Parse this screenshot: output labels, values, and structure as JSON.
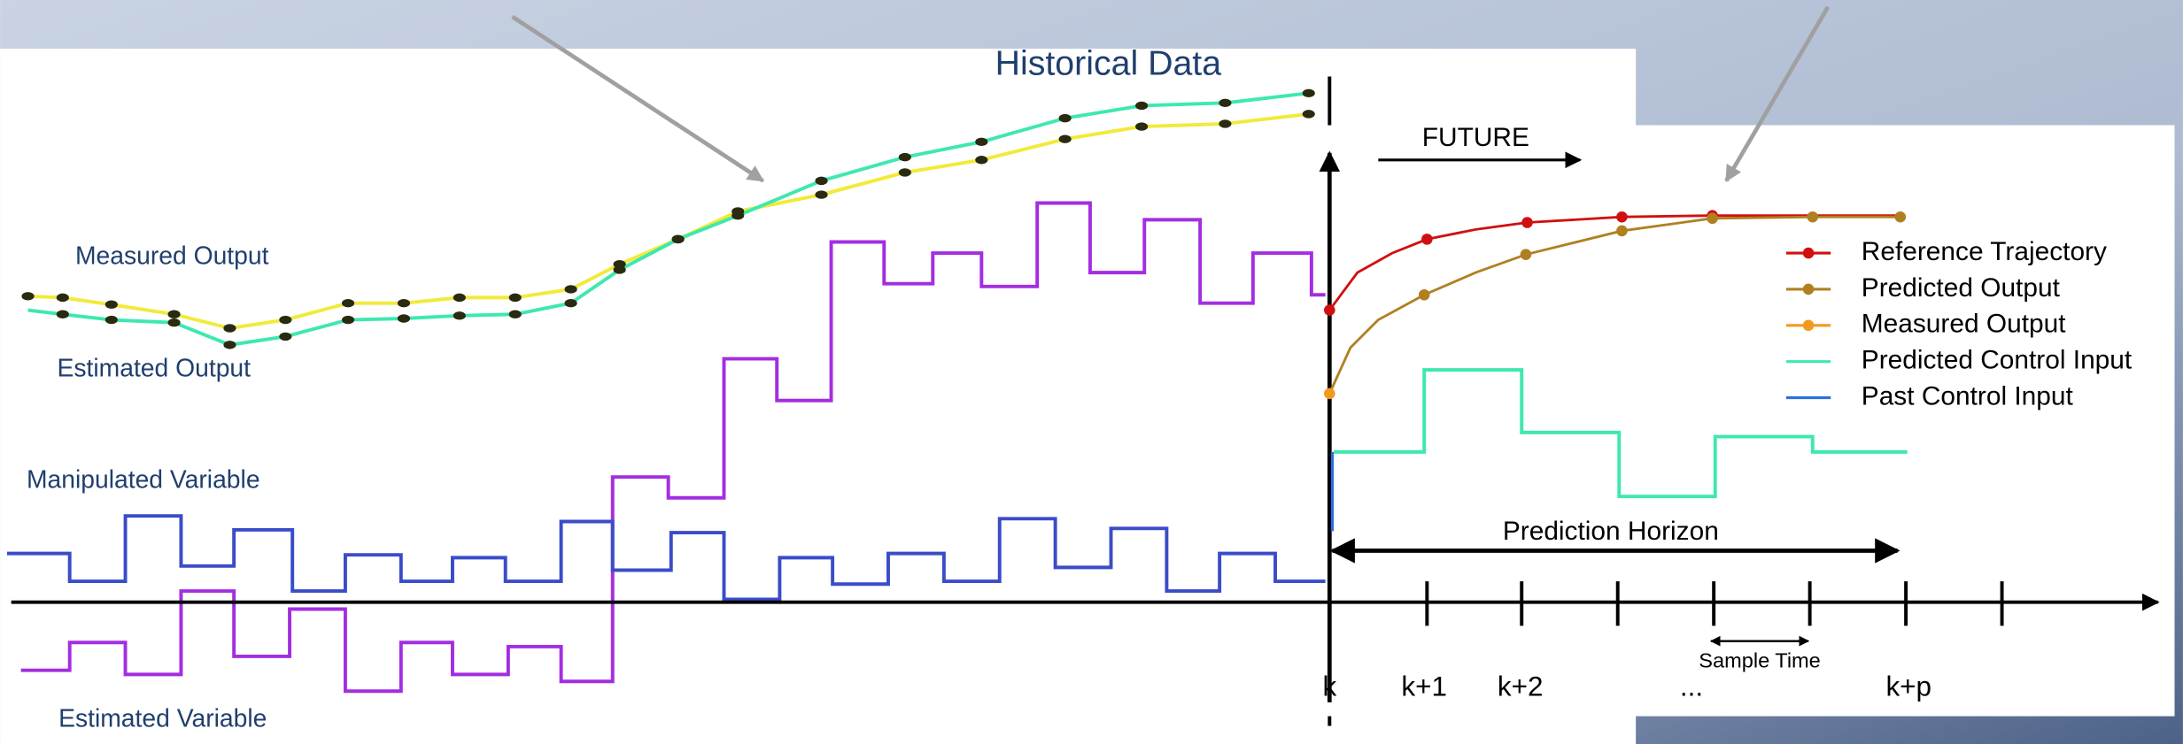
{
  "title": "Historical Data",
  "future": "FUTURE",
  "left_labels": {
    "measured_output": "Measured Output",
    "estimated_output": "Estimated Output",
    "manipulated_variable": "Manipulated Variable",
    "estimated_variable": "Estimated Variable"
  },
  "legend": [
    "Reference Trajectory",
    "Predicted Output",
    "Measured Output",
    "Predicted Control Input",
    "Past Control Input"
  ],
  "prediction_horizon": "Prediction Horizon",
  "sample_time": "Sample Time",
  "time_labels": [
    "k",
    "k+1",
    "k+2",
    "...",
    "k+p"
  ]
}
